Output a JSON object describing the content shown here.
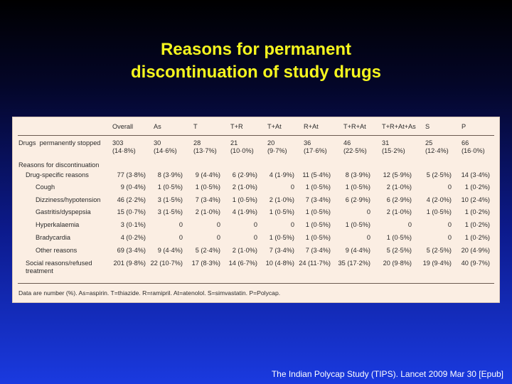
{
  "title": {
    "line1": "Reasons for permanent",
    "line2": "discontinuation of study drugs"
  },
  "table": {
    "columns": [
      "",
      "Overall",
      "As",
      "T",
      "T+R",
      "T+At",
      "R+At",
      "T+R+At",
      "T+R+At+As",
      "S",
      "P"
    ],
    "rows": [
      {
        "label": "Drugs  permanently stopped",
        "indent": 0,
        "cells": [
          "303\n(14·8%)",
          "30\n(14·6%)",
          "28\n(13·7%)",
          "21\n(10·0%)",
          "20\n(9·7%)",
          "36\n(17·6%)",
          "46\n(22·5%)",
          "31\n(15·2%)",
          "25\n(12·4%)",
          "66\n(16·0%)"
        ]
      },
      {
        "label": "Reasons for discontinuation",
        "indent": 0,
        "cells": []
      },
      {
        "label": "Drug-specific reasons",
        "indent": 1,
        "cells": [
          "77 (3·8%)",
          "8 (3·9%)",
          "9 (4·4%)",
          "6 (2·9%)",
          "4 (1·9%)",
          "11 (5·4%)",
          "8 (3·9%)",
          "12 (5·9%)",
          "5 (2·5%)",
          "14 (3·4%)"
        ]
      },
      {
        "label": "Cough",
        "indent": 2,
        "cells": [
          "9 (0·4%)",
          "1 (0·5%)",
          "1 (0·5%)",
          "2 (1·0%)",
          "0",
          "1 (0·5%)",
          "1 (0·5%)",
          "2 (1·0%)",
          "0",
          "1 (0·2%)"
        ]
      },
      {
        "label": "Dizziness/hypotension",
        "indent": 2,
        "cells": [
          "46 (2·2%)",
          "3 (1·5%)",
          "7 (3·4%)",
          "1 (0·5%)",
          "2 (1·0%)",
          "7 (3·4%)",
          "6 (2·9%)",
          "6 (2·9%)",
          "4 (2·0%)",
          "10 (2·4%)"
        ]
      },
      {
        "label": "Gastritis/dyspepsia",
        "indent": 2,
        "cells": [
          "15 (0·7%)",
          "3 (1·5%)",
          "2 (1·0%)",
          "4 (1·9%)",
          "1 (0·5%)",
          "1 (0·5%)",
          "0",
          "2 (1·0%)",
          "1 (0·5%)",
          "1 (0·2%)"
        ]
      },
      {
        "label": "Hyperkalaemia",
        "indent": 2,
        "cells": [
          "3 (0·1%)",
          "0",
          "0",
          "0",
          "0",
          "1 (0·5%)",
          "1 (0·5%)",
          "0",
          "0",
          "1 (0·2%)"
        ]
      },
      {
        "label": "Bradycardia",
        "indent": 2,
        "cells": [
          "4 (0·2%)",
          "0",
          "0",
          "0",
          "1 (0·5%)",
          "1 (0·5%)",
          "0",
          "1 (0·5%)",
          "0",
          "1 (0·2%)"
        ]
      },
      {
        "label": "Other reasons",
        "indent": 2,
        "cells": [
          "69 (3·4%)",
          "9 (4·4%)",
          "5 (2·4%)",
          "2 (1·0%)",
          "7 (3·4%)",
          "7 (3·4%)",
          "9 (4·4%)",
          "5 (2·5%)",
          "5 (2·5%)",
          "20 (4·9%)"
        ]
      },
      {
        "label": "Social reasons/refused\ntreatment",
        "indent": 1,
        "cells": [
          "201 (9·8%)",
          "22 (10·7%)",
          "17 (8·3%)",
          "14 (6·7%)",
          "10 (4·8%)",
          "24 (11·7%)",
          "35 (17·2%)",
          "20 (9·8%)",
          "19 (9·4%)",
          "40 (9·7%)"
        ]
      }
    ],
    "footnote": "Data are number (%). As=aspirin. T=thiazide. R=ramipril. At=atenolol. S=simvastatin. P=Polycap."
  },
  "citation": "The Indian Polycap Study (TIPS). Lancet 2009 Mar 30 [Epub]"
}
